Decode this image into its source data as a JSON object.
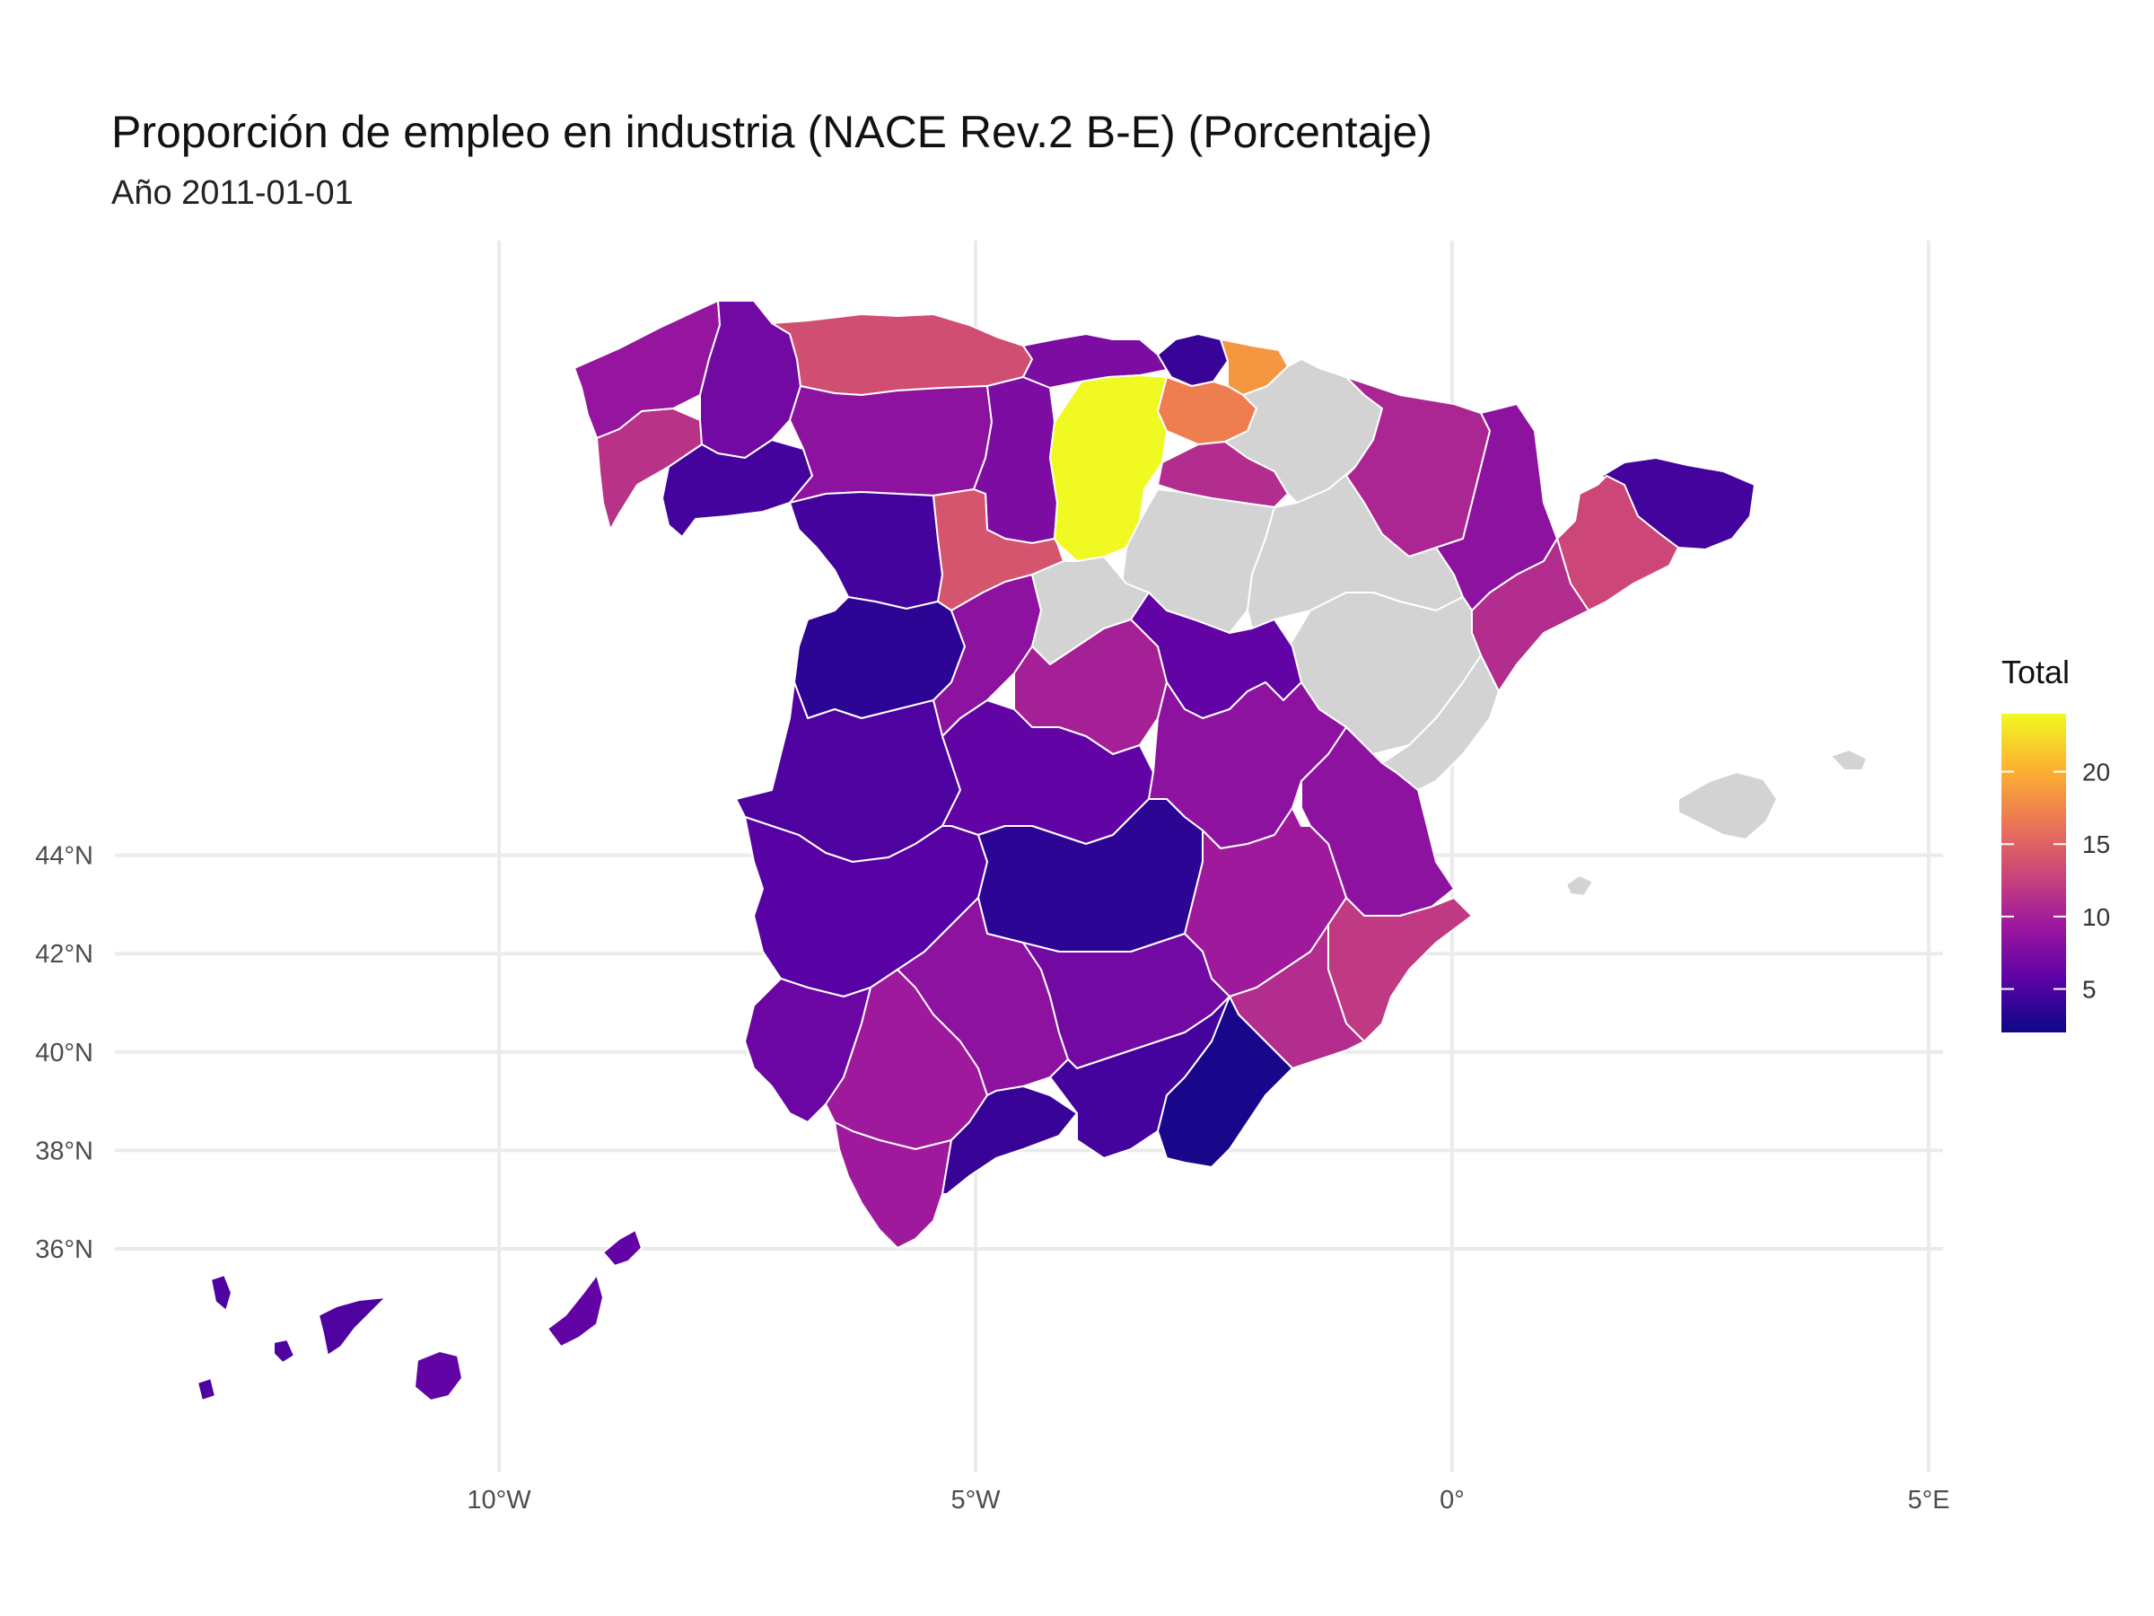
{
  "title": "Proporción de empleo en industria (NACE Rev.2 B-E) (Porcentaje)",
  "subtitle": "Año 2011-01-01",
  "legend": {
    "title": "Total",
    "breaks": [
      5,
      10,
      15,
      20
    ],
    "break_labels": [
      "5",
      "10",
      "15",
      "20"
    ],
    "range": [
      2,
      24
    ],
    "palette": [
      "#0d0887",
      "#5c01a6",
      "#9c179e",
      "#cc4778",
      "#ed7953",
      "#fdb42f",
      "#f0f921"
    ],
    "na_color": "#d3d3d3"
  },
  "chart_data": {
    "type": "choropleth",
    "title": "Proporción de empleo en industria (NACE Rev.2 B-E) (Porcentaje)",
    "subtitle": "Año 2011-01-01",
    "fill_variable": "Total",
    "x_ticks": [
      -10,
      -5,
      0,
      5
    ],
    "x_tick_labels": [
      "10°W",
      "5°W",
      "0°",
      "5°E"
    ],
    "y_ticks": [
      36,
      38,
      40,
      42,
      44
    ],
    "y_tick_labels": [
      "36°N",
      "38°N",
      "40°N",
      "42°N",
      "44°N"
    ],
    "xlim": [
      -13.9,
      5.2
    ],
    "ylim": [
      34.6,
      44.2
    ],
    "regions": [
      {
        "name": "A Coruña",
        "value": 9.0
      },
      {
        "name": "Pontevedra",
        "value": 11.5
      },
      {
        "name": "Lugo",
        "value": 7.0
      },
      {
        "name": "Ourense",
        "value": 4.5
      },
      {
        "name": "Asturias",
        "value": 13.5
      },
      {
        "name": "León",
        "value": 8.5
      },
      {
        "name": "Palencia",
        "value": 7.5
      },
      {
        "name": "Cantabria",
        "value": 7.5
      },
      {
        "name": "Burgos",
        "value": 24.0
      },
      {
        "name": "Bizkaia",
        "value": 4.0
      },
      {
        "name": "Gipuzkoa",
        "value": 18.5
      },
      {
        "name": "Araba",
        "value": 17.0
      },
      {
        "name": "Zamora",
        "value": 4.5
      },
      {
        "name": "Valladolid",
        "value": 14.0
      },
      {
        "name": "La Rioja",
        "value": 11.0
      },
      {
        "name": "Soria",
        "value": null
      },
      {
        "name": "Navarra",
        "value": null
      },
      {
        "name": "Huesca",
        "value": 10.5
      },
      {
        "name": "Zaragoza",
        "value": null
      },
      {
        "name": "Lleida",
        "value": 8.5
      },
      {
        "name": "Girona",
        "value": 4.5
      },
      {
        "name": "Barcelona",
        "value": 13.0
      },
      {
        "name": "Tarragona",
        "value": 11.0
      },
      {
        "name": "Teruel",
        "value": null
      },
      {
        "name": "Castellón",
        "value": null
      },
      {
        "name": "Salamanca",
        "value": 3.5
      },
      {
        "name": "Ávila",
        "value": 8.5
      },
      {
        "name": "Segovia",
        "value": null
      },
      {
        "name": "Madrid",
        "value": 10.0
      },
      {
        "name": "Guadalajara",
        "value": 6.0
      },
      {
        "name": "Cáceres",
        "value": 5.0
      },
      {
        "name": "Toledo",
        "value": 6.0
      },
      {
        "name": "Cuenca",
        "value": 8.5
      },
      {
        "name": "Valencia",
        "value": 8.5
      },
      {
        "name": "Badajoz",
        "value": 5.5
      },
      {
        "name": "Ciudad Real",
        "value": 3.5
      },
      {
        "name": "Albacete",
        "value": 9.5
      },
      {
        "name": "Alicante",
        "value": 12.0
      },
      {
        "name": "Murcia",
        "value": 11.0
      },
      {
        "name": "Huelva",
        "value": 6.5
      },
      {
        "name": "Sevilla",
        "value": 9.5
      },
      {
        "name": "Córdoba",
        "value": 8.5
      },
      {
        "name": "Jaén",
        "value": 7.0
      },
      {
        "name": "Cádiz",
        "value": 9.5
      },
      {
        "name": "Málaga",
        "value": 4.0
      },
      {
        "name": "Granada",
        "value": 4.5
      },
      {
        "name": "Almería",
        "value": 2.5
      },
      {
        "name": "Illes Balears",
        "value": null
      },
      {
        "name": "Santa Cruz de Tenerife",
        "value": 5.0
      },
      {
        "name": "Las Palmas",
        "value": 6.0
      }
    ]
  }
}
